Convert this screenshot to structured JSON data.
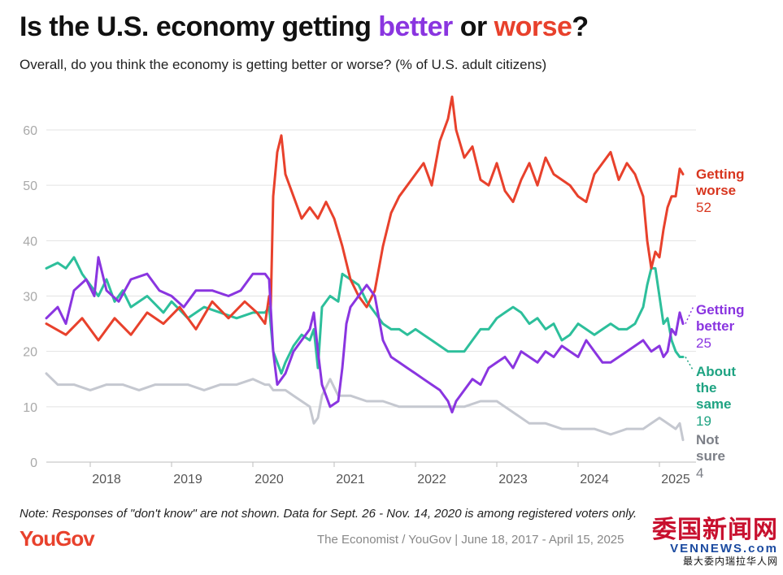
{
  "header": {
    "title_pre": "Is the U.S. economy getting ",
    "title_better": "better",
    "title_mid": " or ",
    "title_worse": "worse",
    "title_post": "?",
    "subtitle": "Overall, do you think the economy is getting better or worse? (% of U.S. adult citizens)"
  },
  "footer": {
    "note": "Note: Responses of \"don't know\" are not shown. Data for Sept. 26 - Nov. 14, 2020 is among registered voters only.",
    "logo": "YouGov",
    "source": "The Economist / YouGov | June 18, 2017 - April 15, 2025",
    "watermark_cn": "委国新闻网",
    "watermark_en": "VENNEWS.com",
    "watermark_sub": "最大委内瑞拉华人网"
  },
  "colors": {
    "worse": "#e8412c",
    "better": "#8a35e0",
    "same": "#2dbf9b",
    "notsure": "#c5c8d0",
    "logo": "#e8412c",
    "grid": "#e3e3e3",
    "axis_text": "#a9a9a9"
  },
  "chart_data": {
    "type": "line",
    "title": "Is the U.S. economy getting better or worse?",
    "ylabel": "% of U.S. adult citizens",
    "xlim": [
      2017.46,
      2025.29
    ],
    "ylim": [
      0,
      60
    ],
    "yticks": [
      0,
      10,
      20,
      30,
      40,
      50,
      60
    ],
    "xticks": [
      {
        "label": "2018",
        "x": 2018.0
      },
      {
        "label": "2019",
        "x": 2019.0
      },
      {
        "label": "2020",
        "x": 2020.0
      },
      {
        "label": "2021",
        "x": 2021.0
      },
      {
        "label": "2022",
        "x": 2022.0
      },
      {
        "label": "2023",
        "x": 2023.0
      },
      {
        "label": "2024",
        "x": 2024.0
      },
      {
        "label": "2025",
        "x": 2025.0
      }
    ],
    "grid": true,
    "series": [
      {
        "key": "worse",
        "name": "Getting worse",
        "label_lines": [
          "Getting",
          "worse"
        ],
        "last": "52",
        "points": [
          [
            2017.46,
            25
          ],
          [
            2017.7,
            23
          ],
          [
            2017.9,
            26
          ],
          [
            2018.1,
            22
          ],
          [
            2018.3,
            26
          ],
          [
            2018.5,
            23
          ],
          [
            2018.7,
            27
          ],
          [
            2018.9,
            25
          ],
          [
            2019.1,
            28
          ],
          [
            2019.3,
            24
          ],
          [
            2019.5,
            29
          ],
          [
            2019.7,
            26
          ],
          [
            2019.9,
            29
          ],
          [
            2020.05,
            27
          ],
          [
            2020.15,
            25
          ],
          [
            2020.2,
            30
          ],
          [
            2020.22,
            28
          ],
          [
            2020.25,
            48
          ],
          [
            2020.3,
            56
          ],
          [
            2020.35,
            59
          ],
          [
            2020.4,
            52
          ],
          [
            2020.5,
            48
          ],
          [
            2020.6,
            44
          ],
          [
            2020.7,
            46
          ],
          [
            2020.8,
            44
          ],
          [
            2020.9,
            47
          ],
          [
            2021.0,
            44
          ],
          [
            2021.1,
            39
          ],
          [
            2021.2,
            33
          ],
          [
            2021.3,
            30
          ],
          [
            2021.4,
            28
          ],
          [
            2021.5,
            31
          ],
          [
            2021.6,
            39
          ],
          [
            2021.7,
            45
          ],
          [
            2021.8,
            48
          ],
          [
            2021.9,
            50
          ],
          [
            2022.0,
            52
          ],
          [
            2022.1,
            54
          ],
          [
            2022.2,
            50
          ],
          [
            2022.3,
            58
          ],
          [
            2022.4,
            62
          ],
          [
            2022.45,
            66
          ],
          [
            2022.5,
            60
          ],
          [
            2022.6,
            55
          ],
          [
            2022.7,
            57
          ],
          [
            2022.8,
            51
          ],
          [
            2022.9,
            50
          ],
          [
            2023.0,
            54
          ],
          [
            2023.1,
            49
          ],
          [
            2023.2,
            47
          ],
          [
            2023.3,
            51
          ],
          [
            2023.4,
            54
          ],
          [
            2023.5,
            50
          ],
          [
            2023.6,
            55
          ],
          [
            2023.7,
            52
          ],
          [
            2023.8,
            51
          ],
          [
            2023.9,
            50
          ],
          [
            2024.0,
            48
          ],
          [
            2024.1,
            47
          ],
          [
            2024.2,
            52
          ],
          [
            2024.3,
            54
          ],
          [
            2024.4,
            56
          ],
          [
            2024.5,
            51
          ],
          [
            2024.6,
            54
          ],
          [
            2024.7,
            52
          ],
          [
            2024.8,
            48
          ],
          [
            2024.85,
            40
          ],
          [
            2024.9,
            35
          ],
          [
            2024.95,
            38
          ],
          [
            2025.0,
            37
          ],
          [
            2025.05,
            42
          ],
          [
            2025.1,
            46
          ],
          [
            2025.15,
            48
          ],
          [
            2025.2,
            48
          ],
          [
            2025.25,
            53
          ],
          [
            2025.29,
            52
          ]
        ]
      },
      {
        "key": "better",
        "name": "Getting better",
        "label_lines": [
          "Getting",
          "better"
        ],
        "last": "25",
        "points": [
          [
            2017.46,
            26
          ],
          [
            2017.6,
            28
          ],
          [
            2017.7,
            25
          ],
          [
            2017.8,
            31
          ],
          [
            2017.95,
            33
          ],
          [
            2018.05,
            30
          ],
          [
            2018.1,
            37
          ],
          [
            2018.2,
            31
          ],
          [
            2018.35,
            29
          ],
          [
            2018.5,
            33
          ],
          [
            2018.7,
            34
          ],
          [
            2018.85,
            31
          ],
          [
            2019.0,
            30
          ],
          [
            2019.15,
            28
          ],
          [
            2019.3,
            31
          ],
          [
            2019.5,
            31
          ],
          [
            2019.7,
            30
          ],
          [
            2019.85,
            31
          ],
          [
            2020.0,
            34
          ],
          [
            2020.15,
            34
          ],
          [
            2020.2,
            33
          ],
          [
            2020.25,
            20
          ],
          [
            2020.3,
            14
          ],
          [
            2020.4,
            16
          ],
          [
            2020.5,
            20
          ],
          [
            2020.6,
            22
          ],
          [
            2020.7,
            24
          ],
          [
            2020.75,
            27
          ],
          [
            2020.8,
            20
          ],
          [
            2020.85,
            14
          ],
          [
            2020.95,
            10
          ],
          [
            2021.05,
            11
          ],
          [
            2021.1,
            17
          ],
          [
            2021.15,
            25
          ],
          [
            2021.2,
            28
          ],
          [
            2021.3,
            30
          ],
          [
            2021.4,
            32
          ],
          [
            2021.5,
            30
          ],
          [
            2021.6,
            22
          ],
          [
            2021.7,
            19
          ],
          [
            2021.8,
            18
          ],
          [
            2021.9,
            17
          ],
          [
            2022.0,
            16
          ],
          [
            2022.1,
            15
          ],
          [
            2022.2,
            14
          ],
          [
            2022.3,
            13
          ],
          [
            2022.4,
            11
          ],
          [
            2022.45,
            9
          ],
          [
            2022.5,
            11
          ],
          [
            2022.6,
            13
          ],
          [
            2022.7,
            15
          ],
          [
            2022.8,
            14
          ],
          [
            2022.9,
            17
          ],
          [
            2023.0,
            18
          ],
          [
            2023.1,
            19
          ],
          [
            2023.2,
            17
          ],
          [
            2023.3,
            20
          ],
          [
            2023.4,
            19
          ],
          [
            2023.5,
            18
          ],
          [
            2023.6,
            20
          ],
          [
            2023.7,
            19
          ],
          [
            2023.8,
            21
          ],
          [
            2023.9,
            20
          ],
          [
            2024.0,
            19
          ],
          [
            2024.1,
            22
          ],
          [
            2024.2,
            20
          ],
          [
            2024.3,
            18
          ],
          [
            2024.4,
            18
          ],
          [
            2024.5,
            19
          ],
          [
            2024.6,
            20
          ],
          [
            2024.7,
            21
          ],
          [
            2024.8,
            22
          ],
          [
            2024.9,
            20
          ],
          [
            2025.0,
            21
          ],
          [
            2025.05,
            19
          ],
          [
            2025.1,
            20
          ],
          [
            2025.15,
            24
          ],
          [
            2025.2,
            23
          ],
          [
            2025.25,
            27
          ],
          [
            2025.29,
            25
          ]
        ]
      },
      {
        "key": "same",
        "name": "About the same",
        "label_lines": [
          "About",
          "the",
          "same"
        ],
        "last": "19",
        "points": [
          [
            2017.46,
            35
          ],
          [
            2017.6,
            36
          ],
          [
            2017.7,
            35
          ],
          [
            2017.8,
            37
          ],
          [
            2017.9,
            34
          ],
          [
            2018.0,
            32
          ],
          [
            2018.1,
            30
          ],
          [
            2018.2,
            33
          ],
          [
            2018.3,
            29
          ],
          [
            2018.4,
            31
          ],
          [
            2018.5,
            28
          ],
          [
            2018.7,
            30
          ],
          [
            2018.9,
            27
          ],
          [
            2019.0,
            29
          ],
          [
            2019.2,
            26
          ],
          [
            2019.4,
            28
          ],
          [
            2019.6,
            27
          ],
          [
            2019.8,
            26
          ],
          [
            2020.0,
            27
          ],
          [
            2020.15,
            27
          ],
          [
            2020.2,
            28
          ],
          [
            2020.25,
            20
          ],
          [
            2020.3,
            18
          ],
          [
            2020.35,
            16
          ],
          [
            2020.4,
            18
          ],
          [
            2020.5,
            21
          ],
          [
            2020.6,
            23
          ],
          [
            2020.7,
            22
          ],
          [
            2020.75,
            24
          ],
          [
            2020.8,
            17
          ],
          [
            2020.85,
            28
          ],
          [
            2020.95,
            30
          ],
          [
            2021.05,
            29
          ],
          [
            2021.1,
            34
          ],
          [
            2021.2,
            33
          ],
          [
            2021.3,
            32
          ],
          [
            2021.4,
            29
          ],
          [
            2021.5,
            27
          ],
          [
            2021.6,
            25
          ],
          [
            2021.7,
            24
          ],
          [
            2021.8,
            24
          ],
          [
            2021.9,
            23
          ],
          [
            2022.0,
            24
          ],
          [
            2022.1,
            23
          ],
          [
            2022.2,
            22
          ],
          [
            2022.3,
            21
          ],
          [
            2022.4,
            20
          ],
          [
            2022.5,
            20
          ],
          [
            2022.6,
            20
          ],
          [
            2022.7,
            22
          ],
          [
            2022.8,
            24
          ],
          [
            2022.9,
            24
          ],
          [
            2023.0,
            26
          ],
          [
            2023.1,
            27
          ],
          [
            2023.2,
            28
          ],
          [
            2023.3,
            27
          ],
          [
            2023.4,
            25
          ],
          [
            2023.5,
            26
          ],
          [
            2023.6,
            24
          ],
          [
            2023.7,
            25
          ],
          [
            2023.8,
            22
          ],
          [
            2023.9,
            23
          ],
          [
            2024.0,
            25
          ],
          [
            2024.1,
            24
          ],
          [
            2024.2,
            23
          ],
          [
            2024.3,
            24
          ],
          [
            2024.4,
            25
          ],
          [
            2024.5,
            24
          ],
          [
            2024.6,
            24
          ],
          [
            2024.7,
            25
          ],
          [
            2024.8,
            28
          ],
          [
            2024.85,
            32
          ],
          [
            2024.9,
            35
          ],
          [
            2024.95,
            35
          ],
          [
            2025.0,
            30
          ],
          [
            2025.05,
            25
          ],
          [
            2025.1,
            26
          ],
          [
            2025.15,
            22
          ],
          [
            2025.2,
            20
          ],
          [
            2025.25,
            19
          ],
          [
            2025.29,
            19
          ]
        ]
      },
      {
        "key": "notsure",
        "name": "Not sure",
        "label_lines": [
          "Not",
          "sure"
        ],
        "last": "4",
        "points": [
          [
            2017.46,
            16
          ],
          [
            2017.6,
            14
          ],
          [
            2017.8,
            14
          ],
          [
            2018.0,
            13
          ],
          [
            2018.2,
            14
          ],
          [
            2018.4,
            14
          ],
          [
            2018.6,
            13
          ],
          [
            2018.8,
            14
          ],
          [
            2019.0,
            14
          ],
          [
            2019.2,
            14
          ],
          [
            2019.4,
            13
          ],
          [
            2019.6,
            14
          ],
          [
            2019.8,
            14
          ],
          [
            2020.0,
            15
          ],
          [
            2020.15,
            14
          ],
          [
            2020.2,
            14
          ],
          [
            2020.25,
            13
          ],
          [
            2020.3,
            13
          ],
          [
            2020.4,
            13
          ],
          [
            2020.5,
            12
          ],
          [
            2020.6,
            11
          ],
          [
            2020.7,
            10
          ],
          [
            2020.75,
            7
          ],
          [
            2020.8,
            8
          ],
          [
            2020.85,
            12
          ],
          [
            2020.95,
            15
          ],
          [
            2021.05,
            12
          ],
          [
            2021.2,
            12
          ],
          [
            2021.4,
            11
          ],
          [
            2021.6,
            11
          ],
          [
            2021.8,
            10
          ],
          [
            2022.0,
            10
          ],
          [
            2022.2,
            10
          ],
          [
            2022.4,
            10
          ],
          [
            2022.6,
            10
          ],
          [
            2022.8,
            11
          ],
          [
            2023.0,
            11
          ],
          [
            2023.2,
            9
          ],
          [
            2023.4,
            7
          ],
          [
            2023.6,
            7
          ],
          [
            2023.8,
            6
          ],
          [
            2024.0,
            6
          ],
          [
            2024.2,
            6
          ],
          [
            2024.4,
            5
          ],
          [
            2024.6,
            6
          ],
          [
            2024.8,
            6
          ],
          [
            2024.9,
            7
          ],
          [
            2025.0,
            8
          ],
          [
            2025.1,
            7
          ],
          [
            2025.2,
            6
          ],
          [
            2025.25,
            7
          ],
          [
            2025.29,
            4
          ]
        ]
      }
    ]
  }
}
